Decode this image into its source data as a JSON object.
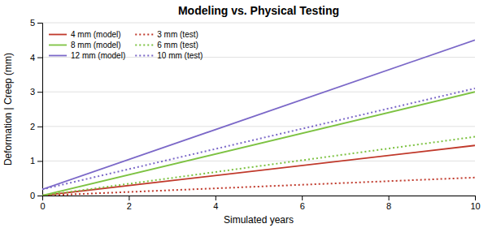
{
  "chart_data": {
    "type": "line",
    "title": "Modeling vs. Physical Testing",
    "xlabel": "Simulated years",
    "ylabel": "Deformation | Creep (mm)",
    "x": [
      0,
      10
    ],
    "series": [
      {
        "name": "4 mm (model)",
        "color": "#c0392b",
        "line_style": "solid",
        "values": [
          0.0,
          1.45
        ]
      },
      {
        "name": "8 mm (model)",
        "color": "#7dc242",
        "line_style": "solid",
        "values": [
          0.0,
          3.0
        ]
      },
      {
        "name": "12 mm (model)",
        "color": "#7b68c8",
        "line_style": "solid",
        "values": [
          0.18,
          4.5
        ]
      },
      {
        "name": "3 mm (test)",
        "color": "#c0392b",
        "line_style": "dotted",
        "values": [
          0.0,
          0.52
        ]
      },
      {
        "name": "6 mm (test)",
        "color": "#7dc242",
        "line_style": "dotted",
        "values": [
          0.0,
          1.7
        ]
      },
      {
        "name": "10 mm (test)",
        "color": "#7b68c8",
        "line_style": "dotted",
        "values": [
          0.18,
          3.1
        ]
      }
    ],
    "xlim": [
      0,
      10
    ],
    "ylim": [
      0,
      5
    ],
    "xticks": [
      0,
      2,
      4,
      6,
      8,
      10
    ],
    "yticks": [
      0,
      1,
      2,
      3,
      4,
      5
    ],
    "grid": "y",
    "legend": "upper left"
  }
}
